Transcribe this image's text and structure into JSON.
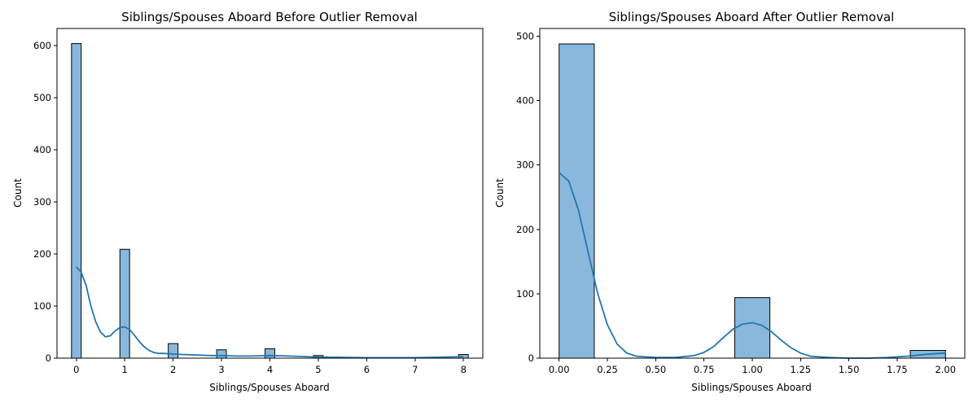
{
  "chart_data": [
    {
      "type": "bar",
      "title": "Siblings/Spouses Aboard Before Outlier Removal",
      "xlabel": "Siblings/Spouses Aboard",
      "ylabel": "Count",
      "xlim": [
        -0.4,
        8.4
      ],
      "ylim": [
        0,
        633
      ],
      "xticks": [
        0,
        1,
        2,
        3,
        4,
        5,
        6,
        7,
        8
      ],
      "xtick_labels": [
        "0",
        "1",
        "2",
        "3",
        "4",
        "5",
        "6",
        "7",
        "8"
      ],
      "yticks": [
        0,
        100,
        200,
        300,
        400,
        500,
        600
      ],
      "ytick_labels": [
        "0",
        "100",
        "200",
        "300",
        "400",
        "500",
        "600"
      ],
      "bin_width": 0.2,
      "bars": [
        {
          "x": 0,
          "value": 604
        },
        {
          "x": 1,
          "value": 209
        },
        {
          "x": 2,
          "value": 28
        },
        {
          "x": 3,
          "value": 16
        },
        {
          "x": 4,
          "value": 18
        },
        {
          "x": 5,
          "value": 5
        },
        {
          "x": 8,
          "value": 7
        }
      ],
      "kde": {
        "x": [
          0,
          0.1,
          0.2,
          0.3,
          0.4,
          0.5,
          0.6,
          0.7,
          0.8,
          0.9,
          1.0,
          1.1,
          1.2,
          1.3,
          1.4,
          1.5,
          1.6,
          1.7,
          1.8,
          2.0,
          2.2,
          2.5,
          2.8,
          3.0,
          3.3,
          3.6,
          4.0,
          4.4,
          5.0,
          6.0,
          7.0,
          7.6,
          8.0
        ],
        "y": [
          175,
          165,
          140,
          100,
          70,
          50,
          41,
          43,
          52,
          59,
          60,
          55,
          44,
          32,
          22,
          15,
          11,
          9,
          9,
          8,
          7,
          6,
          5,
          5,
          4,
          4,
          5,
          4,
          2,
          1,
          1,
          2,
          3
        ]
      },
      "bar_color": "#8ab8dc",
      "line_color": "#1f77b4",
      "grid": false,
      "legend": "none"
    },
    {
      "type": "bar",
      "title": "Siblings/Spouses Aboard After Outlier Removal",
      "xlabel": "Siblings/Spouses Aboard",
      "ylabel": "Count",
      "xlim": [
        -0.1,
        2.1
      ],
      "ylim": [
        0,
        512
      ],
      "xticks": [
        0,
        0.25,
        0.5,
        0.75,
        1.0,
        1.25,
        1.5,
        1.75,
        2.0
      ],
      "xtick_labels": [
        "0.00",
        "0.25",
        "0.50",
        "0.75",
        "1.00",
        "1.25",
        "1.50",
        "1.75",
        "2.00"
      ],
      "yticks": [
        0,
        100,
        200,
        300,
        400,
        500
      ],
      "ytick_labels": [
        "0",
        "100",
        "200",
        "300",
        "400",
        "500"
      ],
      "bars": [
        {
          "x0": 0.0,
          "x1": 0.182,
          "value": 488
        },
        {
          "x0": 0.909,
          "x1": 1.091,
          "value": 94
        },
        {
          "x0": 1.818,
          "x1": 2.0,
          "value": 12
        }
      ],
      "kde": {
        "x": [
          0,
          0.05,
          0.1,
          0.15,
          0.2,
          0.25,
          0.3,
          0.35,
          0.4,
          0.5,
          0.6,
          0.7,
          0.75,
          0.8,
          0.85,
          0.9,
          0.95,
          1.0,
          1.05,
          1.1,
          1.15,
          1.2,
          1.25,
          1.3,
          1.4,
          1.5,
          1.6,
          1.7,
          1.8,
          1.9,
          2.0
        ],
        "y": [
          288,
          275,
          230,
          165,
          100,
          52,
          22,
          8,
          3,
          1,
          1,
          4,
          9,
          18,
          32,
          45,
          53,
          55,
          51,
          41,
          28,
          16,
          8,
          3,
          1,
          0,
          0,
          1,
          3,
          6,
          8
        ]
      },
      "bar_color": "#8ab8dc",
      "line_color": "#1f77b4",
      "grid": false,
      "legend": "none"
    }
  ]
}
